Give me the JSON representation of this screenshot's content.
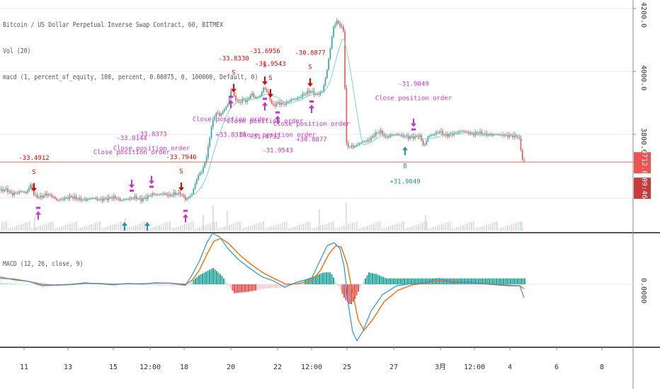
{
  "legend": {
    "symbol": "Bitcoin / US Dollar Perpetual Inverse Swap Contract, 60, BITMEX",
    "volume": "Vol (20)",
    "strategy": "macd (1, percent_of_equity, 100, percent, 0.00075, 0, 100000, Default, 0)",
    "macd": "MACD (12, 26, close, 9)"
  },
  "current_price": {
    "label": "3712.0",
    "countdown": "09:46",
    "value": 3712
  },
  "colors": {
    "up": "#26a69a",
    "down": "#ef5350",
    "ma": "#7fd1c8",
    "macd": "#2196f3",
    "signal": "#ff6d00",
    "buy": "#2196a5",
    "sell": "#e60000",
    "close": "#cc33cc"
  },
  "chart_data": [
    {
      "type": "candlestick",
      "title": "",
      "price_axis": {
        "ticks": [
          "4200.0",
          "4000.0",
          "3800.0"
        ],
        "tick_values": [
          4200,
          4000,
          3800
        ],
        "ylim": [
          3550,
          4200
        ]
      },
      "time_axis": {
        "ticks": [
          "11",
          "13",
          "15",
          "12:00",
          "18",
          "20",
          "22",
          "12:00",
          "25",
          "27",
          "3月",
          "12:00",
          "4",
          "6",
          "8"
        ]
      },
      "close_path": [
        [
          0,
          3622
        ],
        [
          8,
          3625
        ],
        [
          16,
          3610
        ],
        [
          24,
          3615
        ],
        [
          30,
          3620
        ],
        [
          36,
          3612
        ],
        [
          42,
          3640
        ],
        [
          48,
          3605
        ],
        [
          56,
          3600
        ],
        [
          64,
          3610
        ],
        [
          72,
          3605
        ],
        [
          80,
          3590
        ],
        [
          90,
          3596
        ],
        [
          100,
          3602
        ],
        [
          110,
          3594
        ],
        [
          120,
          3592
        ],
        [
          130,
          3598
        ],
        [
          140,
          3592
        ],
        [
          150,
          3596
        ],
        [
          160,
          3600
        ],
        [
          170,
          3590
        ],
        [
          176,
          3594
        ],
        [
          182,
          3595
        ],
        [
          190,
          3600
        ],
        [
          198,
          3592
        ],
        [
          206,
          3600
        ],
        [
          214,
          3610
        ],
        [
          222,
          3608
        ],
        [
          230,
          3612
        ],
        [
          238,
          3605
        ],
        [
          246,
          3612
        ],
        [
          254,
          3612
        ],
        [
          262,
          3592
        ],
        [
          270,
          3610
        ],
        [
          278,
          3665
        ],
        [
          286,
          3690
        ],
        [
          292,
          3740
        ],
        [
          298,
          3830
        ],
        [
          304,
          3870
        ],
        [
          310,
          3860
        ],
        [
          316,
          3880
        ],
        [
          322,
          3900
        ],
        [
          326,
          3950
        ],
        [
          330,
          3920
        ],
        [
          336,
          3900
        ],
        [
          342,
          3910
        ],
        [
          348,
          3905
        ],
        [
          354,
          3930
        ],
        [
          360,
          3915
        ],
        [
          366,
          3920
        ],
        [
          372,
          3950
        ],
        [
          378,
          3930
        ],
        [
          384,
          3890
        ],
        [
          392,
          3900
        ],
        [
          400,
          3895
        ],
        [
          410,
          3910
        ],
        [
          420,
          3915
        ],
        [
          430,
          3930
        ],
        [
          438,
          3938
        ],
        [
          446,
          3925
        ],
        [
          454,
          3935
        ],
        [
          460,
          3990
        ],
        [
          466,
          4080
        ],
        [
          470,
          4140
        ],
        [
          474,
          4160
        ],
        [
          480,
          4145
        ],
        [
          484,
          4130
        ],
        [
          486,
          3980
        ],
        [
          488,
          3770
        ],
        [
          492,
          3760
        ],
        [
          500,
          3762
        ],
        [
          510,
          3775
        ],
        [
          520,
          3782
        ],
        [
          528,
          3800
        ],
        [
          536,
          3810
        ],
        [
          544,
          3790
        ],
        [
          552,
          3798
        ],
        [
          560,
          3800
        ],
        [
          568,
          3795
        ],
        [
          576,
          3790
        ],
        [
          584,
          3792
        ],
        [
          592,
          3795
        ],
        [
          598,
          3760
        ],
        [
          604,
          3795
        ],
        [
          612,
          3800
        ],
        [
          620,
          3810
        ],
        [
          628,
          3795
        ],
        [
          636,
          3800
        ],
        [
          644,
          3805
        ],
        [
          652,
          3812
        ],
        [
          660,
          3805
        ],
        [
          668,
          3800
        ],
        [
          676,
          3805
        ],
        [
          684,
          3800
        ],
        [
          692,
          3798
        ],
        [
          700,
          3800
        ],
        [
          708,
          3798
        ],
        [
          716,
          3796
        ],
        [
          724,
          3795
        ],
        [
          732,
          3792
        ],
        [
          737,
          3720
        ],
        [
          740,
          3712
        ]
      ],
      "volume_spikes": [
        [
          48,
          20
        ],
        [
          176,
          18
        ],
        [
          286,
          22
        ],
        [
          300,
          36
        ],
        [
          320,
          28
        ],
        [
          450,
          30
        ],
        [
          488,
          40
        ],
        [
          600,
          22
        ],
        [
          736,
          12
        ]
      ],
      "signals": [
        {
          "kind": "sell",
          "x": 48,
          "top_value": "-33.4912",
          "side": "S"
        },
        {
          "kind": "close",
          "x": 54,
          "below": true
        },
        {
          "kind": "close",
          "x": 186,
          "label": "Close position order",
          "value": "-33.8144"
        },
        {
          "kind": "buy",
          "x": 176,
          "bottom": true
        },
        {
          "kind": "close",
          "x": 214,
          "label": "Close position order",
          "value": "-33.8373"
        },
        {
          "kind": "buy",
          "x": 208,
          "bottom": true
        },
        {
          "kind": "sell",
          "x": 256,
          "top_value": "-33.7946",
          "side": "S"
        },
        {
          "kind": "close",
          "x": 262,
          "below": true
        },
        {
          "kind": "sell",
          "x": 330,
          "top_value": "-33.8330",
          "side": "S"
        },
        {
          "kind": "close",
          "x": 326,
          "label": "Close position order",
          "value": "+33.8330",
          "below": true
        },
        {
          "kind": "sell",
          "x": 374,
          "top_value": "-31.6956",
          "side": "S"
        },
        {
          "kind": "sell",
          "x": 382,
          "top_value": "-31.9543",
          "side": "S"
        },
        {
          "kind": "close",
          "x": 374,
          "label": "Close position order",
          "value": "+31.4732",
          "below": true
        },
        {
          "kind": "close",
          "x": 392,
          "label": "Close position order",
          "value": "-31.9543",
          "below": true
        },
        {
          "kind": "sell",
          "x": 438,
          "top_value": "-30.8877",
          "side": "S"
        },
        {
          "kind": "close",
          "x": 440,
          "label": "Close position order",
          "value": "+30.8877",
          "below": true
        },
        {
          "kind": "close",
          "x": 584,
          "label": "Close position order",
          "value": "-31.9049",
          "above": true
        },
        {
          "kind": "buy",
          "x": 572,
          "label": "B",
          "value": "+31.9049",
          "below": true
        }
      ]
    },
    {
      "type": "line",
      "title": "MACD (12, 26, close, 9)",
      "yaxis_ticks": [
        "0.0000"
      ],
      "macd_path": [
        [
          0,
          0.25
        ],
        [
          20,
          0.15
        ],
        [
          40,
          0.1
        ],
        [
          60,
          -0.05
        ],
        [
          80,
          -0.02
        ],
        [
          100,
          0.0
        ],
        [
          120,
          0.05
        ],
        [
          140,
          0.02
        ],
        [
          160,
          -0.02
        ],
        [
          180,
          0.03
        ],
        [
          200,
          0.01
        ],
        [
          220,
          0.05
        ],
        [
          240,
          0.04
        ],
        [
          262,
          -0.03
        ],
        [
          272,
          0.35
        ],
        [
          282,
          0.8
        ],
        [
          292,
          1.4
        ],
        [
          300,
          1.72
        ],
        [
          310,
          1.6
        ],
        [
          322,
          1.2
        ],
        [
          336,
          0.85
        ],
        [
          352,
          0.55
        ],
        [
          370,
          0.25
        ],
        [
          386,
          0.12
        ],
        [
          402,
          -0.1
        ],
        [
          420,
          0.08
        ],
        [
          440,
          0.2
        ],
        [
          452,
          0.8
        ],
        [
          462,
          1.3
        ],
        [
          472,
          1.4
        ],
        [
          480,
          1.2
        ],
        [
          486,
          0.6
        ],
        [
          492,
          -0.7
        ],
        [
          498,
          -1.6
        ],
        [
          504,
          -1.9
        ],
        [
          512,
          -1.6
        ],
        [
          524,
          -0.9
        ],
        [
          540,
          -0.35
        ],
        [
          560,
          -0.05
        ],
        [
          580,
          0.02
        ],
        [
          600,
          0.05
        ],
        [
          620,
          0.2
        ],
        [
          640,
          0.05
        ],
        [
          660,
          0.08
        ],
        [
          680,
          0.02
        ],
        [
          700,
          -0.02
        ],
        [
          720,
          -0.05
        ],
        [
          734,
          -0.05
        ],
        [
          740,
          -0.45
        ]
      ],
      "signal_path": [
        [
          0,
          0.2
        ],
        [
          20,
          0.18
        ],
        [
          40,
          0.1
        ],
        [
          60,
          0.0
        ],
        [
          80,
          -0.03
        ],
        [
          100,
          -0.01
        ],
        [
          120,
          0.03
        ],
        [
          140,
          0.03
        ],
        [
          160,
          0.0
        ],
        [
          180,
          0.02
        ],
        [
          200,
          0.02
        ],
        [
          220,
          0.04
        ],
        [
          240,
          0.04
        ],
        [
          262,
          0.0
        ],
        [
          272,
          0.15
        ],
        [
          282,
          0.5
        ],
        [
          292,
          1.0
        ],
        [
          302,
          1.45
        ],
        [
          312,
          1.55
        ],
        [
          324,
          1.35
        ],
        [
          338,
          1.0
        ],
        [
          354,
          0.68
        ],
        [
          372,
          0.38
        ],
        [
          390,
          0.16
        ],
        [
          404,
          0.0
        ],
        [
          420,
          0.02
        ],
        [
          440,
          0.12
        ],
        [
          452,
          0.45
        ],
        [
          464,
          1.0
        ],
        [
          474,
          1.3
        ],
        [
          482,
          1.25
        ],
        [
          490,
          0.7
        ],
        [
          498,
          -0.3
        ],
        [
          506,
          -1.2
        ],
        [
          514,
          -1.55
        ],
        [
          526,
          -1.2
        ],
        [
          542,
          -0.6
        ],
        [
          562,
          -0.2
        ],
        [
          582,
          -0.02
        ],
        [
          600,
          0.03
        ],
        [
          620,
          0.12
        ],
        [
          640,
          0.1
        ],
        [
          660,
          0.06
        ],
        [
          680,
          0.04
        ],
        [
          700,
          0.0
        ],
        [
          720,
          -0.03
        ],
        [
          734,
          -0.05
        ],
        [
          740,
          -0.15
        ]
      ],
      "histogram_regions": [
        [
          0,
          0.05
        ],
        [
          24,
          0.02
        ],
        [
          60,
          -0.03
        ],
        [
          120,
          0.02
        ],
        [
          262,
          -0.05
        ],
        [
          280,
          0.3
        ],
        [
          300,
          0.55
        ],
        [
          312,
          0.3
        ],
        [
          330,
          -0.3
        ],
        [
          350,
          -0.25
        ],
        [
          372,
          -0.15
        ],
        [
          402,
          -0.1
        ],
        [
          456,
          0.4
        ],
        [
          466,
          0.4
        ],
        [
          478,
          -0.1
        ],
        [
          486,
          -0.5
        ],
        [
          494,
          -0.7
        ],
        [
          500,
          -0.5
        ],
        [
          510,
          0.0
        ],
        [
          520,
          0.4
        ],
        [
          530,
          0.35
        ],
        [
          545,
          0.2
        ]
      ]
    }
  ]
}
